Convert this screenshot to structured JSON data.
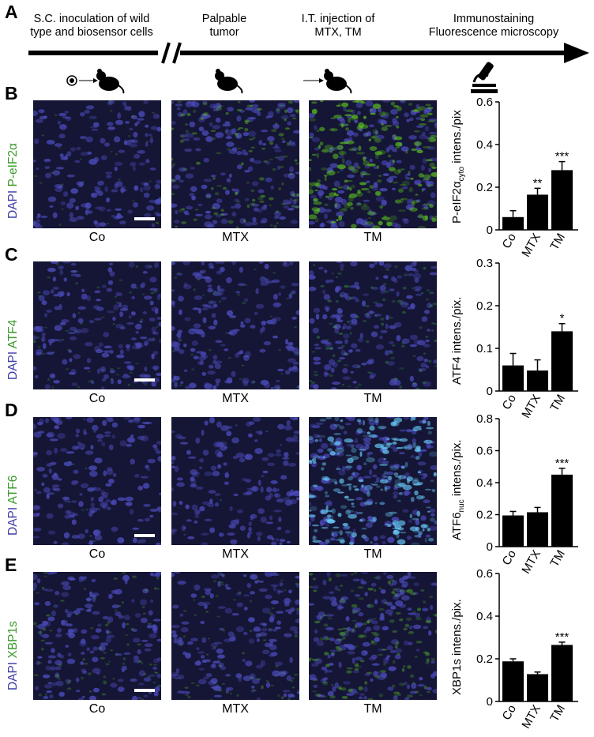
{
  "panel_a": {
    "letter": "A",
    "steps": [
      {
        "line1": "S.C. inoculation of wild",
        "line2": "type and biosensor cells"
      },
      {
        "line1": "Palpable",
        "line2": "tumor"
      },
      {
        "line1": "I.T. injection of",
        "line2": "MTX, TM"
      },
      {
        "line1": "Immunostaining",
        "line2": "Fluorescence microscopy"
      }
    ],
    "icons": [
      "mouse-inoculation-icon",
      "mouse-icon",
      "mouse-injection-icon",
      "microscope-icon"
    ]
  },
  "conditions": [
    "Co",
    "MTX",
    "TM"
  ],
  "rows": [
    {
      "letter": "B",
      "dapi": "DAPI",
      "marker": "P-eIF2α",
      "ylabel_main": "P-eIF2α",
      "ylabel_sub": "cyto",
      "ylabel_rest": " intens./pix",
      "green_level": [
        0.1,
        0.45,
        0.85
      ],
      "green_color": "#5ac21c"
    },
    {
      "letter": "C",
      "dapi": "DAPI",
      "marker": "ATF4",
      "ylabel_main": "ATF4 intens./pix.",
      "ylabel_sub": "",
      "ylabel_rest": "",
      "green_level": [
        0.2,
        0.15,
        0.35
      ],
      "green_color": "#3aa84a"
    },
    {
      "letter": "D",
      "dapi": "DAPI",
      "marker": "ATF6",
      "ylabel_main": "ATF6",
      "ylabel_sub": "nuc",
      "ylabel_rest": " intens./pix.",
      "green_level": [
        0.05,
        0.02,
        0.9
      ],
      "green_color": "#6ad0ff"
    },
    {
      "letter": "E",
      "dapi": "DAPI",
      "marker": "XBP1s",
      "ylabel_main": "XBP1s intens./pix.",
      "ylabel_sub": "",
      "ylabel_rest": "",
      "green_level": [
        0.3,
        0.25,
        0.55
      ],
      "green_color": "#4fae2a"
    }
  ],
  "chart_data": [
    {
      "type": "bar",
      "panel": "B",
      "categories": [
        "Co",
        "MTX",
        "TM"
      ],
      "values": [
        0.06,
        0.165,
        0.28
      ],
      "errors": [
        0.03,
        0.03,
        0.04
      ],
      "significance": [
        "",
        "**",
        "***"
      ],
      "ylim": [
        0,
        0.6
      ],
      "yticks": [
        "0",
        "0.2",
        "0.4",
        "0.6"
      ],
      "ylabel": "P-eIF2α cyto intens./pix"
    },
    {
      "type": "bar",
      "panel": "C",
      "categories": [
        "Co",
        "MTX",
        "TM"
      ],
      "values": [
        0.06,
        0.048,
        0.14
      ],
      "errors": [
        0.028,
        0.025,
        0.018
      ],
      "significance": [
        "",
        "",
        "*"
      ],
      "ylim": [
        0,
        0.3
      ],
      "yticks": [
        "0",
        "0.1",
        "0.2",
        "0.3"
      ],
      "ylabel": "ATF4 intens./pix."
    },
    {
      "type": "bar",
      "panel": "D",
      "categories": [
        "Co",
        "MTX",
        "TM"
      ],
      "values": [
        0.195,
        0.215,
        0.45
      ],
      "errors": [
        0.025,
        0.03,
        0.04
      ],
      "significance": [
        "",
        "",
        "***"
      ],
      "ylim": [
        0,
        0.8
      ],
      "yticks": [
        "0",
        "0.2",
        "0.4",
        "0.6",
        "0.8"
      ],
      "ylabel": "ATF6 nuc intens./pix."
    },
    {
      "type": "bar",
      "panel": "E",
      "categories": [
        "Co",
        "MTX",
        "TM"
      ],
      "values": [
        0.188,
        0.128,
        0.265
      ],
      "errors": [
        0.012,
        0.01,
        0.013
      ],
      "significance": [
        "",
        "",
        "***"
      ],
      "ylim": [
        0,
        0.6
      ],
      "yticks": [
        "0",
        "0.2",
        "0.4",
        "0.6"
      ],
      "ylabel": "XBP1s intens./pix."
    }
  ]
}
